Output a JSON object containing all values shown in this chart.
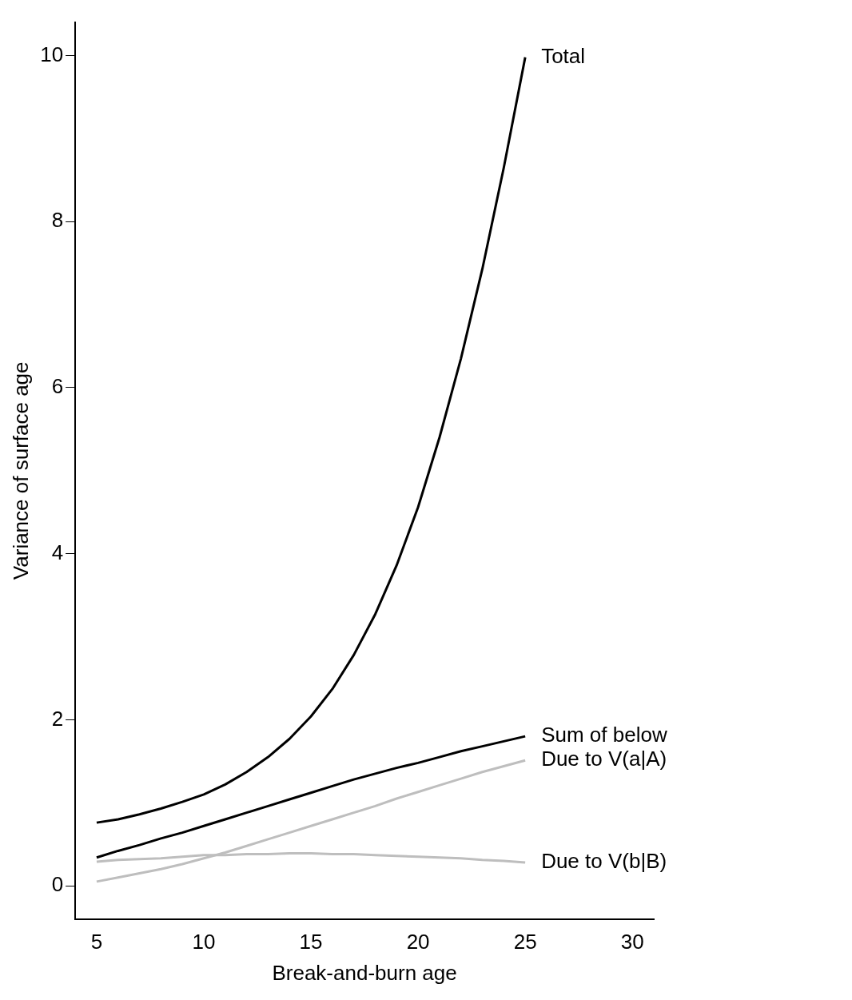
{
  "chart_data": {
    "type": "line",
    "xlabel": "Break-and-burn age",
    "ylabel": "Variance of surface age",
    "xlim": [
      4,
      31
    ],
    "xticks": [
      5,
      10,
      15,
      20,
      25,
      30
    ],
    "ylim": [
      -0.4,
      10.4
    ],
    "yticks": [
      0,
      2,
      4,
      6,
      8,
      10
    ],
    "grid": false,
    "legend": false,
    "marker": "none",
    "line_style": "solid",
    "x": [
      5,
      6,
      7,
      8,
      9,
      10,
      11,
      12,
      13,
      14,
      15,
      16,
      17,
      18,
      19,
      20,
      21,
      22,
      23,
      24,
      25
    ],
    "series": [
      {
        "name": "Total",
        "color": "#000000",
        "values": [
          0.76,
          0.8,
          0.86,
          0.93,
          1.01,
          1.1,
          1.22,
          1.37,
          1.55,
          1.77,
          2.04,
          2.37,
          2.78,
          3.27,
          3.86,
          4.56,
          5.4,
          6.35,
          7.43,
          8.65,
          9.98
        ]
      },
      {
        "name": "Sum of below",
        "color": "#000000",
        "values": [
          0.34,
          0.42,
          0.49,
          0.57,
          0.64,
          0.72,
          0.8,
          0.88,
          0.96,
          1.04,
          1.12,
          1.2,
          1.28,
          1.35,
          1.42,
          1.48,
          1.55,
          1.62,
          1.68,
          1.74,
          1.8
        ]
      },
      {
        "name": "Due to V(a|A)",
        "color": "#bebebe",
        "values": [
          0.05,
          0.1,
          0.15,
          0.2,
          0.26,
          0.33,
          0.4,
          0.48,
          0.56,
          0.64,
          0.72,
          0.8,
          0.88,
          0.96,
          1.05,
          1.13,
          1.21,
          1.29,
          1.37,
          1.44,
          1.51
        ]
      },
      {
        "name": "Due to V(b|B)",
        "color": "#bebebe",
        "values": [
          0.29,
          0.31,
          0.32,
          0.33,
          0.35,
          0.37,
          0.37,
          0.38,
          0.38,
          0.39,
          0.39,
          0.38,
          0.38,
          0.37,
          0.36,
          0.35,
          0.34,
          0.33,
          0.31,
          0.3,
          0.28
        ]
      }
    ]
  }
}
